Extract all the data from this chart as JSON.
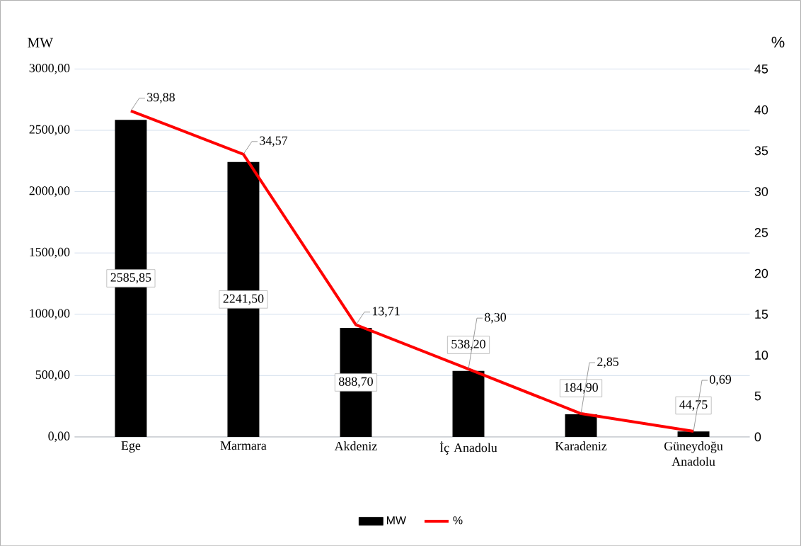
{
  "chart_data": {
    "type": "bar",
    "ylabel": "MW",
    "y2label": "%",
    "categories": [
      "Ege",
      "Marmara",
      "Akdeniz",
      "İç Anadolu",
      "Karadeniz",
      "Güneydoğu Anadolu"
    ],
    "series": [
      {
        "name": "MW",
        "color": "#000000",
        "values": [
          2585.85,
          2241.5,
          888.7,
          538.2,
          184.9,
          44.75
        ],
        "value_labels": [
          "2585,85",
          "2241,50",
          "888,70",
          "538,20",
          "184,90",
          "44,75"
        ]
      },
      {
        "name": "%",
        "type": "line",
        "axis": "y2",
        "color": "#ff0000",
        "values": [
          39.88,
          34.57,
          13.71,
          8.3,
          2.85,
          0.69
        ],
        "value_labels": [
          "39,88",
          "34,57",
          "13,71",
          "8,30",
          "2,85",
          "0,69"
        ]
      }
    ],
    "ylim": [
      0,
      3000
    ],
    "yticks": [
      {
        "value": 0,
        "label": "0,00"
      },
      {
        "value": 500,
        "label": "500,00"
      },
      {
        "value": 1000,
        "label": "1000,00"
      },
      {
        "value": 1500,
        "label": "1500,00"
      },
      {
        "value": 2000,
        "label": "2000,00"
      },
      {
        "value": 2500,
        "label": "2500,00"
      },
      {
        "value": 3000,
        "label": "3000,00"
      }
    ],
    "y2lim": [
      0,
      45
    ],
    "y2ticks": [
      0,
      5,
      10,
      15,
      20,
      25,
      30,
      35,
      40,
      45
    ],
    "grid": "y",
    "legend": "bottom"
  }
}
